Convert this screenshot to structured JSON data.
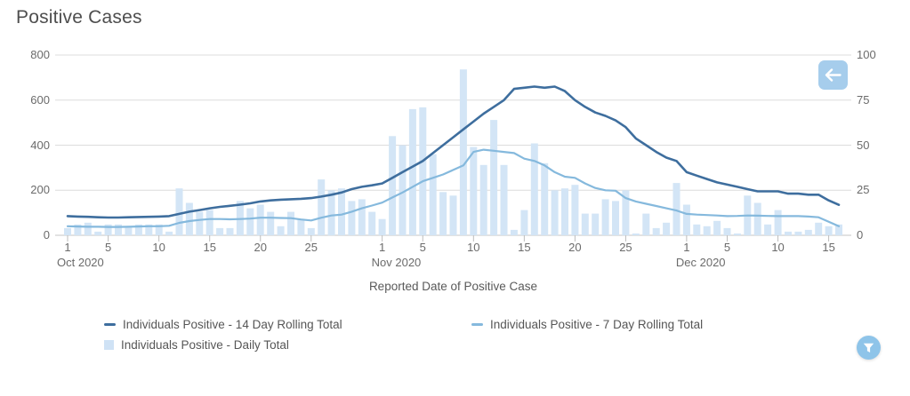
{
  "header": {
    "title": "Positive Cases"
  },
  "axis_title": "Reported Date of Positive Case",
  "controls": {
    "back_button": {
      "icon": "arrow-left",
      "color": "#a6cdec"
    },
    "filter_button": {
      "icon": "funnel",
      "color": "#8ec4e9"
    }
  },
  "legend": {
    "items": [
      {
        "label": "Individuals Positive - 14 Day Rolling Total",
        "marker": "line",
        "color": "#3e6e9e",
        "row": 1,
        "col": 1
      },
      {
        "label": "Individuals Positive - 7 Day Rolling Total",
        "marker": "line",
        "color": "#85b9dd",
        "row": 1,
        "col": 2
      },
      {
        "label": "Individuals Positive - Daily Total",
        "marker": "square",
        "color": "#cfe2f5",
        "row": 2,
        "col": 1
      }
    ]
  },
  "chart_data": {
    "type": "bar",
    "subtype": "mixed-bar-line-dual-axis",
    "title": "Positive Cases",
    "xlabel": "Reported Date of Positive Case",
    "x_start": "Oct 1 2020",
    "x_end": "Dec 16 2020",
    "grid": true,
    "left_axis": {
      "range": [
        0,
        800
      ],
      "ticks": [
        0,
        200,
        400,
        600,
        800
      ]
    },
    "right_axis": {
      "range": [
        0,
        100
      ],
      "ticks": [
        0,
        25,
        50,
        75,
        100
      ]
    },
    "x_ticks": [
      {
        "day": 1,
        "label": "1"
      },
      {
        "day": 5,
        "label": "5"
      },
      {
        "day": 10,
        "label": "10"
      },
      {
        "day": 15,
        "label": "15"
      },
      {
        "day": 20,
        "label": "20"
      },
      {
        "day": 25,
        "label": "25"
      },
      {
        "day": 32,
        "label": "1"
      },
      {
        "day": 36,
        "label": "5"
      },
      {
        "day": 41,
        "label": "10"
      },
      {
        "day": 46,
        "label": "15"
      },
      {
        "day": 51,
        "label": "20"
      },
      {
        "day": 56,
        "label": "25"
      },
      {
        "day": 62,
        "label": "1"
      },
      {
        "day": 66,
        "label": "5"
      },
      {
        "day": 71,
        "label": "10"
      },
      {
        "day": 76,
        "label": "15"
      }
    ],
    "month_labels": [
      {
        "day": 1,
        "label": "Oct 2020"
      },
      {
        "day": 32,
        "label": "Nov 2020"
      },
      {
        "day": 62,
        "label": "Dec 2020"
      }
    ],
    "series": [
      {
        "name": "Individuals Positive - Daily Total",
        "type": "bar",
        "axis": "right",
        "color": "#d3e5f6",
        "values": [
          4,
          6,
          7,
          2,
          6,
          6,
          5,
          6,
          6,
          6,
          2,
          26,
          18,
          13,
          14,
          4,
          4,
          19,
          15,
          17,
          13,
          5,
          13,
          9,
          4,
          31,
          25,
          26,
          19,
          20,
          13,
          9,
          55,
          50,
          70,
          71,
          45,
          24,
          22,
          92,
          49,
          39,
          64,
          39,
          3,
          14,
          51,
          40,
          25,
          26,
          28,
          12,
          12,
          20,
          19,
          25,
          1,
          12,
          4,
          7,
          29,
          17,
          6,
          5,
          8,
          4,
          1,
          22,
          18,
          6,
          14,
          2,
          2,
          3,
          7,
          5,
          6
        ]
      },
      {
        "name": "Individuals Positive - 7 Day Rolling Total",
        "type": "line",
        "axis": "left",
        "color": "#85b9dd",
        "values": [
          40,
          39,
          38,
          38,
          37,
          37,
          38,
          39,
          40,
          40,
          42,
          55,
          63,
          68,
          72,
          72,
          71,
          72,
          74,
          78,
          78,
          77,
          76,
          70,
          66,
          78,
          88,
          92,
          105,
          120,
          132,
          145,
          168,
          190,
          215,
          240,
          255,
          270,
          290,
          310,
          370,
          380,
          375,
          370,
          365,
          340,
          330,
          310,
          280,
          260,
          255,
          230,
          210,
          200,
          198,
          165,
          150,
          140,
          130,
          120,
          110,
          95,
          92,
          90,
          88,
          85,
          86,
          88,
          87,
          86,
          85,
          85,
          85,
          83,
          80,
          60,
          40
        ]
      },
      {
        "name": "Individuals Positive - 14 Day Rolling Total",
        "type": "line",
        "axis": "left",
        "color": "#3e6e9e",
        "values": [
          85,
          83,
          82,
          80,
          79,
          79,
          80,
          81,
          82,
          83,
          85,
          95,
          105,
          112,
          120,
          126,
          131,
          136,
          142,
          150,
          155,
          158,
          160,
          162,
          165,
          172,
          180,
          190,
          205,
          215,
          222,
          230,
          255,
          280,
          305,
          330,
          365,
          400,
          435,
          470,
          505,
          540,
          570,
          600,
          650,
          655,
          660,
          655,
          660,
          640,
          600,
          570,
          545,
          530,
          510,
          480,
          430,
          400,
          370,
          345,
          330,
          280,
          265,
          250,
          235,
          225,
          215,
          205,
          195,
          195,
          195,
          185,
          185,
          180,
          180,
          155,
          135
        ]
      }
    ]
  }
}
